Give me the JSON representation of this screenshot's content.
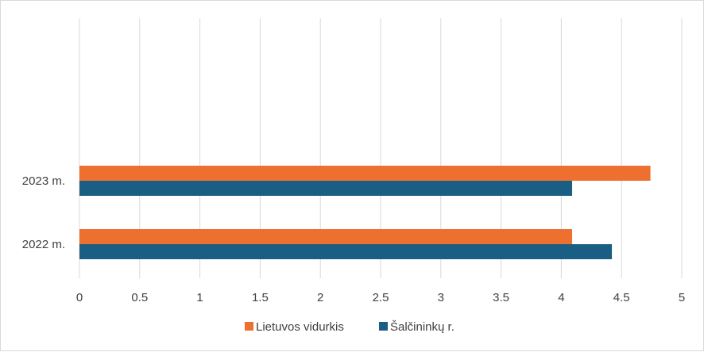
{
  "chart_data": {
    "type": "bar",
    "orientation": "horizontal",
    "categories": [
      "2022 m.",
      "2023 m."
    ],
    "series": [
      {
        "name": "Lietuvos vidurkis",
        "color": "#ed7031",
        "values": [
          4.09,
          4.74
        ]
      },
      {
        "name": "Šalčininkų r.",
        "color": "#1b5e83",
        "values": [
          4.42,
          4.09
        ]
      }
    ],
    "xlim": [
      0,
      5
    ],
    "xticks": [
      "0",
      "0.5",
      "1",
      "1.5",
      "2",
      "2.5",
      "3",
      "3.5",
      "4",
      "4.5",
      "5"
    ],
    "grid": true,
    "legend_position": "bottom"
  }
}
